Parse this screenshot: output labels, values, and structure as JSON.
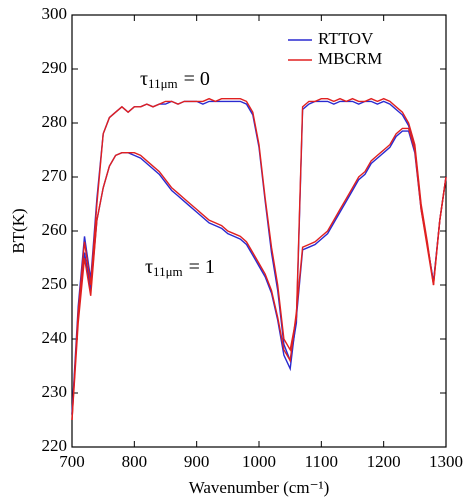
{
  "chart_data": {
    "type": "line",
    "xlabel": "Wavenumber (cm⁻¹)",
    "ylabel": "BT(K)",
    "annotations": [
      {
        "symbol": "τ",
        "subscript": "11μm",
        "text": "= 0"
      },
      {
        "symbol": "τ",
        "subscript": "11μm",
        "text": "= 1"
      }
    ],
    "xlim": [
      700,
      1300
    ],
    "xticks": [
      700,
      800,
      900,
      1000,
      1100,
      1200,
      1300
    ],
    "ylim": [
      220,
      300
    ],
    "yticks": [
      220,
      230,
      240,
      250,
      260,
      270,
      280,
      290,
      300
    ],
    "legend": "upper right",
    "x": [
      700,
      710,
      720,
      730,
      740,
      750,
      760,
      770,
      780,
      790,
      800,
      810,
      820,
      830,
      840,
      850,
      860,
      870,
      880,
      890,
      900,
      910,
      920,
      930,
      940,
      950,
      960,
      970,
      980,
      990,
      1000,
      1010,
      1020,
      1030,
      1040,
      1050,
      1060,
      1070,
      1080,
      1090,
      1100,
      1110,
      1120,
      1130,
      1140,
      1150,
      1160,
      1170,
      1180,
      1190,
      1200,
      1210,
      1220,
      1230,
      1240,
      1250,
      1260,
      1270,
      1280,
      1290,
      1300
    ],
    "series": [
      {
        "name": "RTTOV",
        "color": "#2a2ad0",
        "values": [
          [
            226,
            246,
            259,
            251,
            266,
            278,
            281,
            282,
            283,
            282,
            283,
            283,
            283.5,
            283,
            283.5,
            283.5,
            284,
            283.5,
            284,
            284,
            284,
            283.5,
            284,
            284,
            284,
            284,
            284,
            284,
            283.5,
            281.5,
            275.5,
            265.5,
            256,
            249,
            239,
            236,
            243,
            282.5,
            283.5,
            284,
            284,
            284,
            283.5,
            284,
            284,
            284,
            283.5,
            284,
            284,
            283.5,
            284,
            283.5,
            282.5,
            281.5,
            279.5,
            275.5,
            264.5,
            257.5,
            250.5,
            262,
            270
          ],
          [
            226,
            244,
            256,
            249,
            262,
            268,
            272,
            274,
            274.5,
            274.5,
            274,
            273.5,
            272.5,
            271.5,
            270.5,
            269,
            267.5,
            266.5,
            265.5,
            264.5,
            263.5,
            262.5,
            261.5,
            261,
            260.5,
            259.5,
            259,
            258.5,
            257.5,
            255.5,
            253.5,
            251.5,
            248.5,
            243.5,
            237,
            234.5,
            244,
            256.5,
            257,
            257.5,
            258.5,
            259.5,
            261.5,
            263.5,
            265.5,
            267.5,
            269.5,
            270.5,
            272.5,
            273.5,
            274.5,
            275.5,
            277.5,
            278.5,
            278.5,
            274.5,
            264,
            257.5,
            250.5,
            262,
            270
          ]
        ]
      },
      {
        "name": "MBCRM",
        "color": "#e02020",
        "values": [
          [
            225,
            245,
            258,
            250,
            265,
            278,
            281,
            282,
            283,
            282,
            283,
            283,
            283.5,
            283,
            283.5,
            284,
            284,
            283.5,
            284,
            284,
            284,
            284,
            284.5,
            284,
            284.5,
            284.5,
            284.5,
            284.5,
            284,
            282,
            276,
            266,
            257,
            250,
            240,
            238,
            244,
            283,
            284,
            284,
            284.5,
            284.5,
            284,
            284.5,
            284,
            284.5,
            284,
            284,
            284.5,
            284,
            284.5,
            284,
            283,
            282,
            280,
            276,
            265,
            258,
            250,
            262,
            270
          ],
          [
            225,
            243,
            255,
            248,
            262,
            268,
            272,
            274,
            274.5,
            274.5,
            274.5,
            274,
            273,
            272,
            271,
            269.5,
            268,
            267,
            266,
            265,
            264,
            263,
            262,
            261.5,
            261,
            260,
            259.5,
            259,
            258,
            256,
            254,
            252,
            249,
            244,
            238,
            236,
            245,
            257,
            257.5,
            258,
            259,
            260,
            262,
            264,
            266,
            268,
            270,
            271,
            273,
            274,
            275,
            276,
            278,
            279,
            279,
            275,
            264,
            257,
            250,
            262,
            270
          ]
        ]
      }
    ]
  }
}
